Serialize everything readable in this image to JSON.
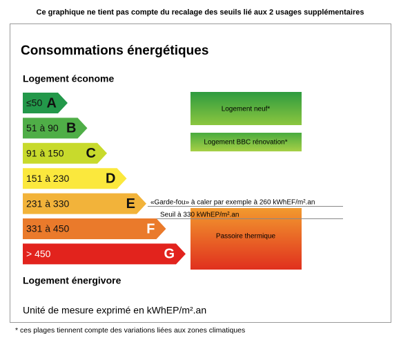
{
  "header": {
    "note": "Ce graphique ne tient pas compte du recalage des seuils lié aux 2 usages supplémentaires",
    "title": "Consommations énergétiques"
  },
  "top_label": "Logement économe",
  "bottom_label": "Logement énergivore",
  "classes": [
    {
      "range": "≤50",
      "letter": "A",
      "color": "#23984a"
    },
    {
      "range": "51 à 90",
      "letter": "B",
      "color": "#4fae47"
    },
    {
      "range": "91 à 150",
      "letter": "C",
      "color": "#c8da2c"
    },
    {
      "range": "151 à 230",
      "letter": "D",
      "color": "#fbe83d"
    },
    {
      "range": "231 à 330",
      "letter": "E",
      "color": "#f2b33a"
    },
    {
      "range": "331 à 450",
      "letter": "F",
      "color": "#ea7a2b"
    },
    {
      "range": "> 450",
      "letter": "G",
      "color": "#e2231d"
    }
  ],
  "boxes": {
    "neuf": "Logement neuf*",
    "bbc": "Logement BBC rénovation*",
    "passoire": "Passoire thermique"
  },
  "thresholds": {
    "garde_fou": "«Garde-fou» à caler par exemple à 260 kWhEF/m².an",
    "seuil": "Seuil à 330 kWhEP/m².an"
  },
  "unit": "Unité de mesure exprimé en kWhEP/m².an",
  "footnote": "* ces plages tiennent compte des variations liées aux zones climatiques"
}
